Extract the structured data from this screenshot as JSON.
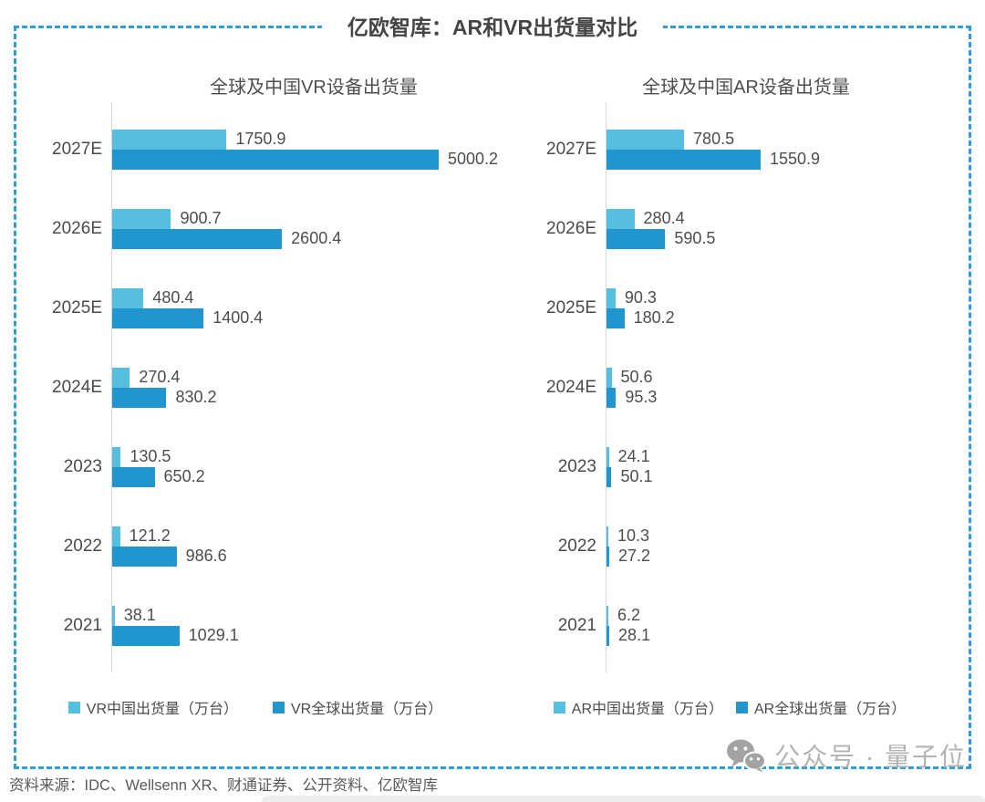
{
  "title": "亿欧智库：AR和VR出货量对比",
  "footer": {
    "source": "资料来源：IDC、Wellsenn XR、财通证券、公开资料、亿欧智库"
  },
  "watermark": {
    "icon": "wechat-icon",
    "text": "公众号 · 量子位"
  },
  "colors": {
    "china_series": "#56bfe0",
    "global_series": "#2196ce",
    "border": "#2d9ed6",
    "axis": "#d8d8d8"
  },
  "chart_data": [
    {
      "type": "bar",
      "orientation": "horizontal",
      "title": "全球及中国VR设备出货量",
      "unit": "万台",
      "categories": [
        "2027E",
        "2026E",
        "2025E",
        "2024E",
        "2023",
        "2022",
        "2021"
      ],
      "series": [
        {
          "name": "VR中国出货量（万台）",
          "color": "#56bfe0",
          "values": [
            1750.9,
            900.7,
            480.4,
            270.4,
            130.5,
            121.2,
            38.1
          ]
        },
        {
          "name": "VR全球出货量（万台）",
          "color": "#2196ce",
          "values": [
            5000.2,
            2600.4,
            1400.4,
            830.2,
            650.2,
            986.6,
            1029.1
          ]
        }
      ],
      "xlim": [
        0,
        5200
      ],
      "grid": false,
      "legend_position": "bottom"
    },
    {
      "type": "bar",
      "orientation": "horizontal",
      "title": "全球及中国AR设备出货量",
      "unit": "万台",
      "categories": [
        "2027E",
        "2026E",
        "2025E",
        "2024E",
        "2023",
        "2022",
        "2021"
      ],
      "series": [
        {
          "name": "AR中国出货量（万台）",
          "color": "#56bfe0",
          "values": [
            780.5,
            280.4,
            90.3,
            50.6,
            24.1,
            10.3,
            6.2
          ]
        },
        {
          "name": "AR全球出货量（万台）",
          "color": "#2196ce",
          "values": [
            1550.9,
            590.5,
            180.2,
            95.3,
            50.1,
            27.2,
            28.1
          ]
        }
      ],
      "xlim": [
        0,
        1600
      ],
      "grid": false,
      "legend_position": "bottom"
    }
  ]
}
